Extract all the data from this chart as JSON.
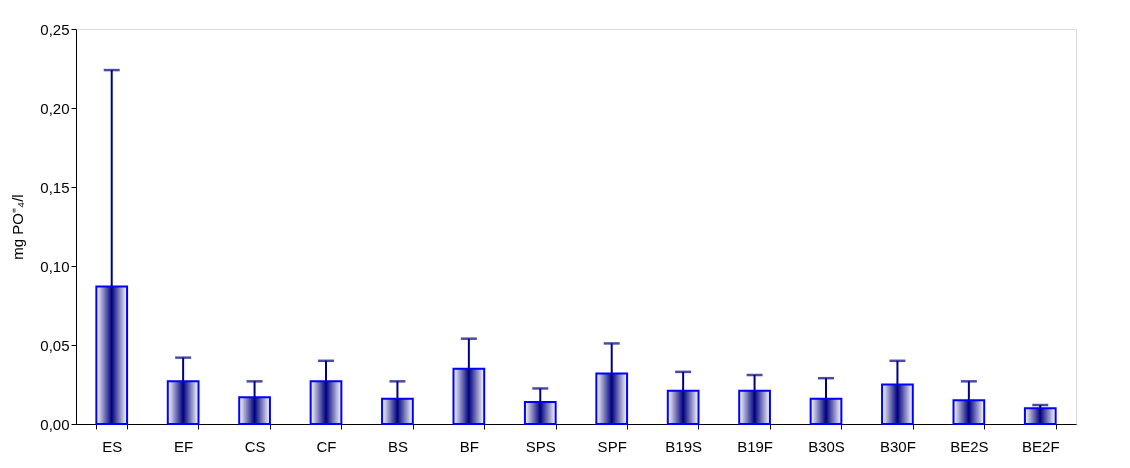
{
  "chart_data": {
    "type": "bar",
    "ylabel": "mg PO⁼₄/l",
    "categories": [
      "ES",
      "EF",
      "CS",
      "CF",
      "BS",
      "BF",
      "SPS",
      "SPF",
      "B19S",
      "B19F",
      "B30S",
      "B30F",
      "BE2S",
      "BE2F"
    ],
    "values": [
      0.087,
      0.027,
      0.017,
      0.027,
      0.016,
      0.035,
      0.014,
      0.032,
      0.021,
      0.021,
      0.016,
      0.025,
      0.015,
      0.01
    ],
    "errors": [
      [
        0.087,
        0.224
      ],
      [
        0.027,
        0.042
      ],
      [
        0.017,
        0.027
      ],
      [
        0.027,
        0.04
      ],
      [
        0.016,
        0.027
      ],
      [
        0.035,
        0.054
      ],
      [
        0.014,
        0.0225
      ],
      [
        0.032,
        0.051
      ],
      [
        0.021,
        0.033
      ],
      [
        0.021,
        0.031
      ],
      [
        0.016,
        0.029
      ],
      [
        0.025,
        0.04
      ],
      [
        0.015,
        0.027
      ],
      [
        0.01,
        0.012
      ]
    ],
    "color": "#0000ff",
    "ylim": [
      0,
      0.25
    ],
    "yticks": [
      {
        "value": 0,
        "label": "0,00"
      },
      {
        "value": 0.05,
        "label": "0,05"
      },
      {
        "value": 0.1,
        "label": "0,10"
      },
      {
        "value": 0.15,
        "label": "0,15"
      },
      {
        "value": 0.2,
        "label": "0,20"
      },
      {
        "value": 0.25,
        "label": "0,25"
      }
    ],
    "grid": false
  }
}
